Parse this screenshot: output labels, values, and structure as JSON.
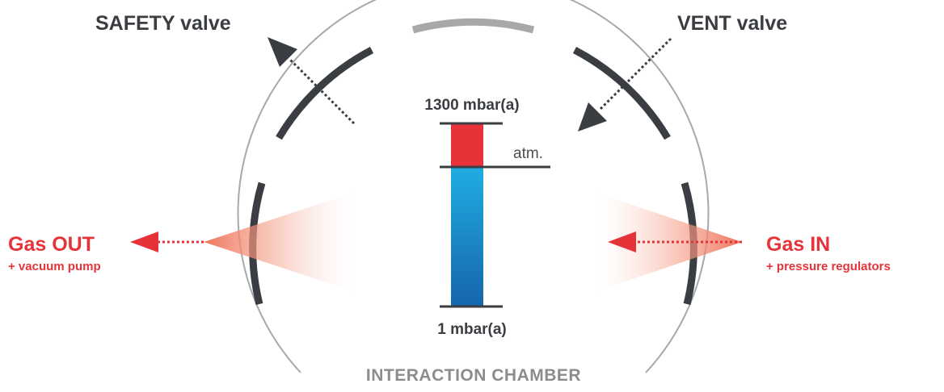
{
  "labels": {
    "safety_valve": "SAFETY valve",
    "vent_valve": "VENT valve",
    "gas_out": "Gas OUT",
    "gas_out_sub": "+ vacuum pump",
    "gas_in": "Gas IN",
    "gas_in_sub": "+ pressure regulators",
    "pressure_max": "1300 mbar(a)",
    "pressure_min": "1 mbar(a)",
    "atm": "atm.",
    "chamber": "INTERACTION CHAMBER"
  },
  "colors": {
    "dark": "#3a3d41",
    "red": "#e63339",
    "gray": "#a6a8aa",
    "blue_top": "#20ade3",
    "blue_bottom": "#1665aa"
  }
}
